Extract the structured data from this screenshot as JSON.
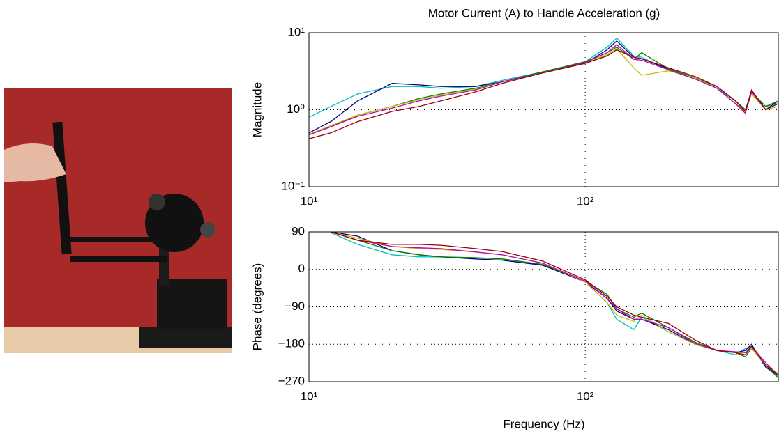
{
  "chart_data": [
    {
      "type": "line",
      "title": "Motor Current (A) to Handle Acceleration (g)",
      "y_label": "Magnitude",
      "x": [
        10,
        12,
        15,
        20,
        25,
        30,
        40,
        50,
        70,
        100,
        120,
        130,
        150,
        160,
        200,
        250,
        300,
        350,
        380,
        400,
        450,
        500
      ],
      "xlim": [
        10,
        500
      ],
      "xticks": [
        {
          "value": 10,
          "label": "10¹"
        },
        {
          "value": 100,
          "label": "10²"
        }
      ],
      "xscale": "log",
      "ylim": [
        0.1,
        10
      ],
      "yticks": [
        {
          "value": 0.1,
          "label": "10⁻¹"
        },
        {
          "value": 1,
          "label": "10⁰"
        },
        {
          "value": 10,
          "label": "10¹"
        }
      ],
      "yscale": "log",
      "grid": true,
      "series": [
        {
          "color": "#00bfbf",
          "values": [
            0.8,
            1.1,
            1.6,
            2.0,
            2.0,
            1.9,
            2.0,
            2.4,
            3.1,
            4.2,
            6.5,
            8.5,
            5.0,
            4.8,
            3.3,
            2.5,
            1.9,
            1.3,
            1.0,
            1.7,
            1.1,
            1.2
          ]
        },
        {
          "color": "#00007f",
          "values": [
            0.5,
            0.7,
            1.3,
            2.2,
            2.1,
            2.0,
            2.0,
            2.3,
            3.0,
            4.0,
            6.0,
            7.8,
            4.8,
            4.6,
            3.4,
            2.6,
            1.9,
            1.2,
            0.95,
            1.8,
            1.0,
            1.3
          ]
        },
        {
          "color": "#008000",
          "values": [
            0.48,
            0.6,
            0.85,
            1.1,
            1.4,
            1.6,
            1.9,
            2.3,
            3.1,
            4.2,
            5.5,
            6.5,
            4.5,
            5.5,
            3.4,
            2.6,
            2.0,
            1.3,
            1.0,
            1.7,
            1.1,
            1.3
          ]
        },
        {
          "color": "#bfbf00",
          "values": [
            0.48,
            0.62,
            0.85,
            1.1,
            1.35,
            1.55,
            1.85,
            2.3,
            3.0,
            4.0,
            5.2,
            6.2,
            3.5,
            2.8,
            3.2,
            2.6,
            1.9,
            1.2,
            0.95,
            1.6,
            1.0,
            1.1
          ]
        },
        {
          "color": "#bf00bf",
          "values": [
            0.47,
            0.6,
            0.82,
            1.05,
            1.3,
            1.5,
            1.8,
            2.3,
            3.0,
            4.1,
            5.5,
            7.0,
            4.5,
            4.4,
            3.3,
            2.5,
            1.9,
            1.2,
            0.9,
            1.7,
            1.0,
            1.2
          ]
        },
        {
          "color": "#990000",
          "values": [
            0.42,
            0.5,
            0.7,
            0.95,
            1.1,
            1.3,
            1.7,
            2.2,
            3.0,
            4.0,
            5.0,
            6.0,
            4.8,
            4.6,
            3.5,
            2.7,
            2.0,
            1.3,
            0.95,
            1.8,
            1.0,
            1.2
          ]
        }
      ]
    },
    {
      "type": "line",
      "y_label": "Phase (degrees)",
      "x_label": "Frequency (Hz)",
      "x": [
        10,
        12,
        15,
        20,
        25,
        30,
        40,
        50,
        70,
        100,
        120,
        130,
        150,
        160,
        200,
        250,
        300,
        350,
        380,
        400,
        450,
        500
      ],
      "xlim": [
        10,
        500
      ],
      "xticks": [
        {
          "value": 10,
          "label": "10¹"
        },
        {
          "value": 100,
          "label": "10²"
        }
      ],
      "xscale": "log",
      "ylim": [
        -270,
        90
      ],
      "yticks": [
        {
          "value": 90,
          "label": "90"
        },
        {
          "value": 0,
          "label": "0"
        },
        {
          "value": -90,
          "label": "−90"
        },
        {
          "value": -180,
          "label": "−180"
        },
        {
          "value": -270,
          "label": "−270"
        }
      ],
      "yscale": "linear",
      "grid": true,
      "series": [
        {
          "color": "#00bfbf",
          "values": [
            null,
            88,
            60,
            35,
            30,
            30,
            28,
            25,
            12,
            -30,
            -80,
            -120,
            -145,
            -115,
            -150,
            -180,
            -195,
            -205,
            -190,
            -185,
            -235,
            -258
          ]
        },
        {
          "color": "#00007f",
          "values": [
            null,
            90,
            80,
            45,
            35,
            30,
            25,
            22,
            10,
            -30,
            -70,
            -100,
            -120,
            -120,
            -145,
            -180,
            -195,
            -200,
            -195,
            -180,
            -235,
            -255
          ]
        },
        {
          "color": "#008000",
          "values": [
            null,
            90,
            70,
            45,
            35,
            30,
            28,
            25,
            12,
            -28,
            -60,
            -95,
            -115,
            -105,
            -140,
            -175,
            -195,
            -200,
            -210,
            -190,
            -230,
            -262
          ]
        },
        {
          "color": "#bfbf00",
          "values": [
            null,
            90,
            75,
            55,
            50,
            48,
            42,
            35,
            15,
            -30,
            -80,
            -110,
            -125,
            -110,
            -150,
            -180,
            -195,
            -200,
            -200,
            -190,
            -230,
            -250
          ]
        },
        {
          "color": "#bf00bf",
          "values": [
            null,
            90,
            70,
            55,
            52,
            50,
            42,
            35,
            15,
            -28,
            -70,
            -95,
            -120,
            -120,
            -140,
            -178,
            -195,
            -198,
            -200,
            -185,
            -225,
            -255
          ]
        },
        {
          "color": "#990000",
          "values": [
            null,
            90,
            70,
            60,
            60,
            58,
            50,
            43,
            20,
            -25,
            -65,
            -90,
            -110,
            -115,
            -130,
            -170,
            -195,
            -200,
            -205,
            -185,
            -230,
            -255
          ]
        }
      ]
    }
  ]
}
